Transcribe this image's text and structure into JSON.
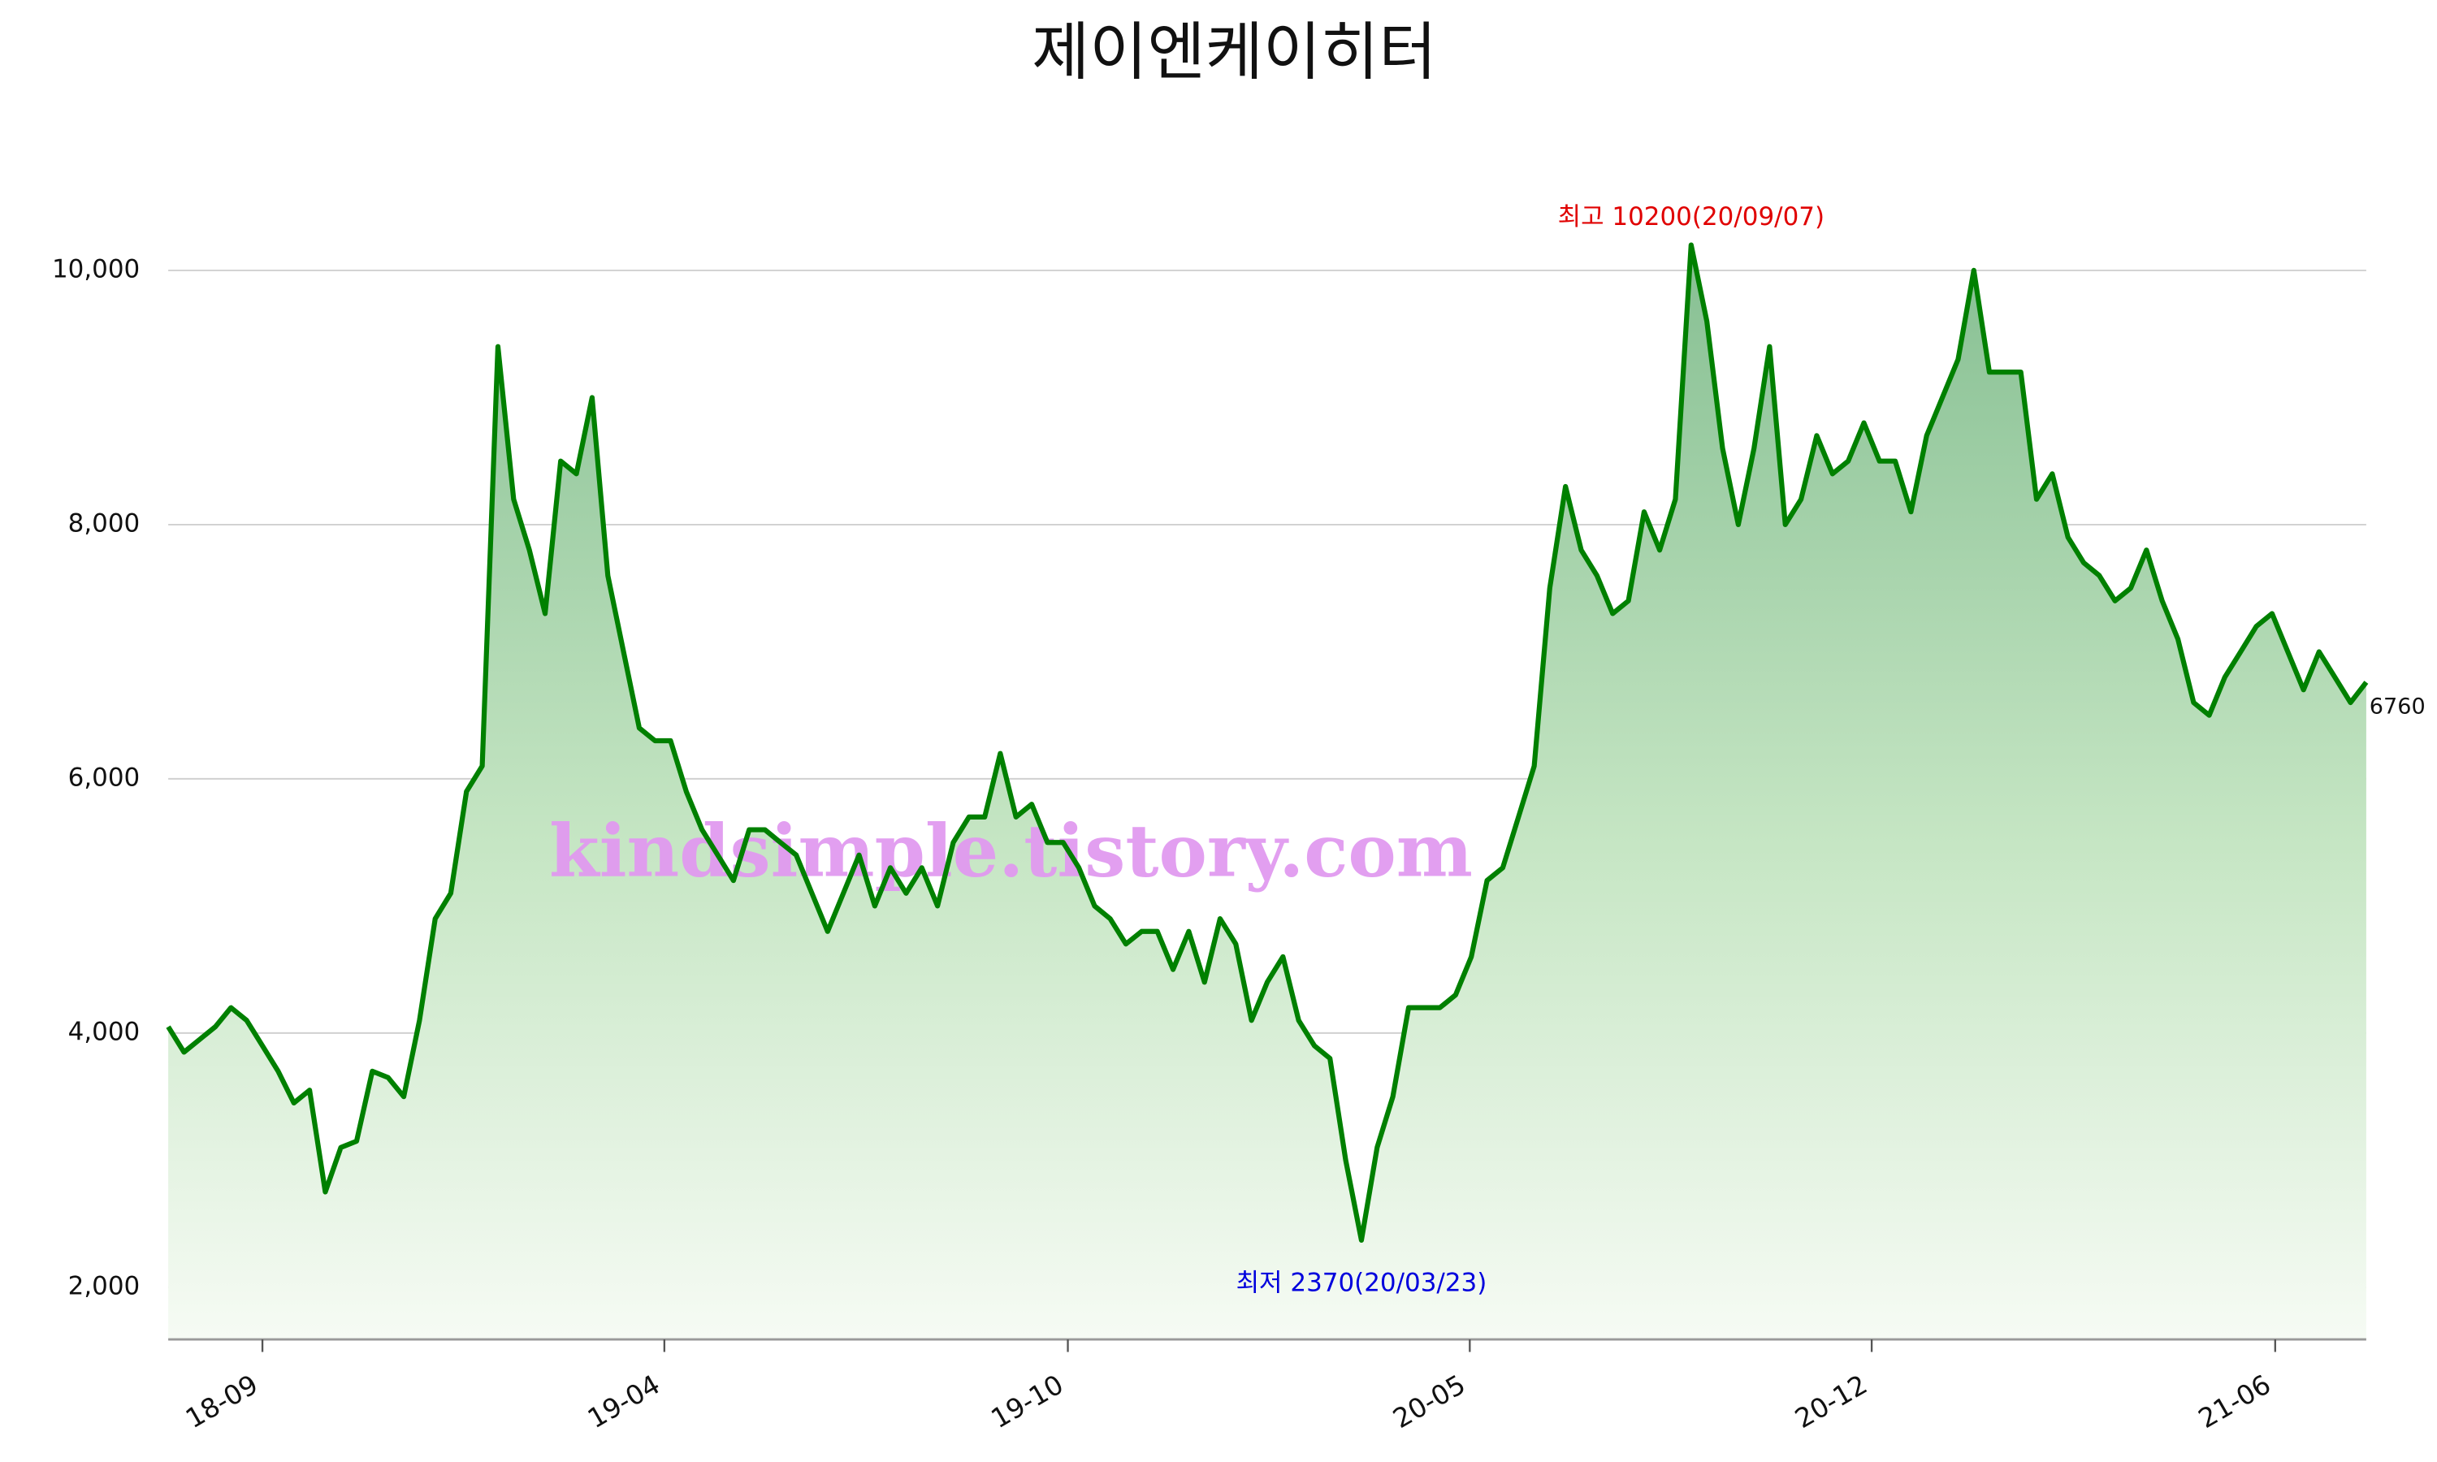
{
  "chart_data": {
    "type": "line",
    "title": "제이엔케이히터",
    "watermark": "kindsimple.tistory.com",
    "series": [
      {
        "color": "#008000",
        "values": [
          4050,
          3850,
          3950,
          4050,
          4200,
          4100,
          3900,
          3700,
          3450,
          3550,
          2750,
          3100,
          3150,
          3700,
          3650,
          3500,
          4100,
          4900,
          5100,
          5900,
          6100,
          9400,
          8200,
          7800,
          7300,
          8500,
          8400,
          9000,
          7600,
          7000,
          6400,
          6300,
          6300,
          5900,
          5600,
          5400,
          5200,
          5600,
          5600,
          5500,
          5400,
          5100,
          4800,
          5100,
          5400,
          5000,
          5300,
          5100,
          5300,
          5000,
          5500,
          5700,
          5700,
          6200,
          5700,
          5800,
          5500,
          5500,
          5300,
          5000,
          4900,
          4700,
          4800,
          4800,
          4500,
          4800,
          4400,
          4900,
          4700,
          4100,
          4400,
          4600,
          4100,
          3900,
          3800,
          3000,
          2370,
          3100,
          3500,
          4200,
          4200,
          4200,
          4300,
          4600,
          5200,
          5300,
          5700,
          6100,
          7500,
          8300,
          7800,
          7600,
          7300,
          7400,
          8100,
          7800,
          8200,
          10200,
          9600,
          8600,
          8000,
          8600,
          9400,
          8000,
          8200,
          8700,
          8400,
          8500,
          8800,
          8500,
          8500,
          8100,
          8700,
          9000,
          9300,
          10000,
          9200,
          9200,
          9200,
          8200,
          8400,
          7900,
          7700,
          7600,
          7400,
          7500,
          7800,
          7400,
          7100,
          6600,
          6500,
          6800,
          7000,
          7200,
          7300,
          7000,
          6700,
          7000,
          6800,
          6600,
          6760
        ]
      }
    ],
    "annotations": {
      "max": "최고 10200(20/09/07)",
      "min": "최저 2370(20/03/23)"
    },
    "xlim": [
      0,
      140
    ],
    "xticks": [
      {
        "value": 6,
        "label": "18-09"
      },
      {
        "value": 31.6,
        "label": "19-04"
      },
      {
        "value": 57.3,
        "label": "19-10"
      },
      {
        "value": 82.9,
        "label": "20-05"
      },
      {
        "value": 108.5,
        "label": "20-12"
      },
      {
        "value": 134.2,
        "label": "21-06"
      }
    ],
    "ylim": [
      1590,
      10600
    ],
    "yticks": [
      {
        "value": 2000,
        "label": "2,000"
      },
      {
        "value": 4000,
        "label": "4,000"
      },
      {
        "value": 6000,
        "label": "6,000"
      },
      {
        "value": 8000,
        "label": "8,000"
      },
      {
        "value": 10000,
        "label": "10,000"
      }
    ],
    "grid": true
  }
}
